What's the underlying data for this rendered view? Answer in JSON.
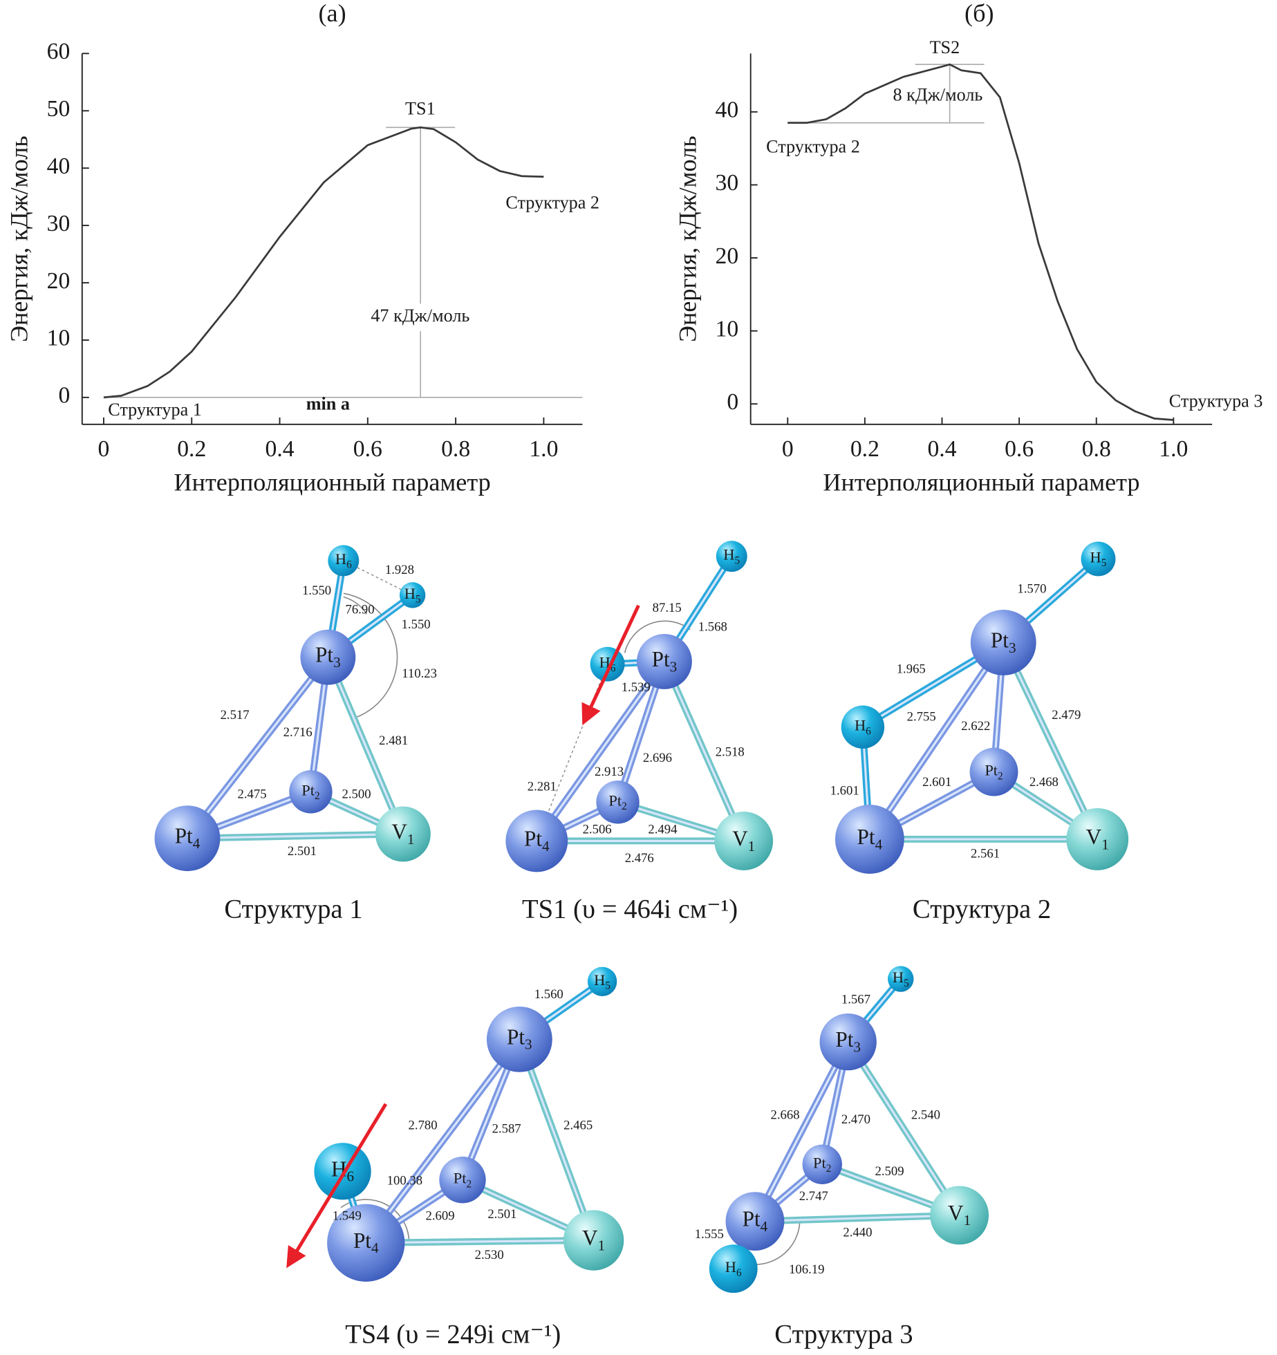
{
  "chart_data": [
    {
      "type": "line",
      "panel": "(а)",
      "y_label": "Энергия, кДж/моль",
      "x_label": "Интерполяционный параметр",
      "color": "#3a3a3a",
      "x": [
        0,
        0.04,
        0.1,
        0.15,
        0.2,
        0.3,
        0.4,
        0.5,
        0.6,
        0.7,
        0.72,
        0.75,
        0.8,
        0.85,
        0.9,
        0.95,
        1.0
      ],
      "values": [
        0,
        0.3,
        2,
        4.5,
        8,
        17.5,
        28,
        37.5,
        44,
        46.9,
        47.1,
        46.8,
        44.5,
        41.5,
        39.5,
        38.6,
        38.5
      ],
      "xlim": [
        -0.049,
        1.088
      ],
      "ylim": [
        -4.7,
        60
      ],
      "xticks": [
        0,
        0.2,
        0.4,
        0.6,
        0.8,
        {
          "value": 1,
          "label": "1.0"
        }
      ],
      "yticks": [
        0,
        10,
        20,
        30,
        40,
        50,
        60
      ],
      "annotations": [
        "TS1",
        "47 кДж/моль",
        "Структура 1",
        "min a",
        "Структура 2"
      ]
    },
    {
      "type": "line",
      "panel": "(б)",
      "y_label": "Энергия, кДж/моль",
      "x_label": "Интерполяционный параметр",
      "color": "#3a3a3a",
      "x": [
        0,
        0.05,
        0.1,
        0.15,
        0.2,
        0.3,
        0.4,
        0.42,
        0.45,
        0.5,
        0.55,
        0.6,
        0.65,
        0.7,
        0.75,
        0.8,
        0.85,
        0.9,
        0.95,
        1.0
      ],
      "values": [
        38.5,
        38.5,
        39,
        40.5,
        42.5,
        44.8,
        46.2,
        46.5,
        45.7,
        45.3,
        42,
        33,
        22,
        14,
        7.5,
        3,
        0.5,
        -1,
        -2,
        -2.2
      ],
      "xlim": [
        -0.096,
        1.1
      ],
      "ylim": [
        -2.8,
        48
      ],
      "xticks": [
        0,
        0.2,
        0.4,
        0.6,
        0.8,
        {
          "value": 1,
          "label": "1.0"
        }
      ],
      "yticks": [
        0,
        10,
        20,
        30,
        40
      ],
      "annotations": [
        "TS2",
        "8 кДж/моль",
        "Структура 2",
        "Структура 3"
      ]
    }
  ],
  "structures": [
    {
      "caption": "Структура 1",
      "atoms": [
        {
          "symbol": "H",
          "index": "6"
        },
        {
          "symbol": "H",
          "index": "5"
        },
        {
          "symbol": "Pt",
          "index": "3"
        },
        {
          "symbol": "Pt",
          "index": "2"
        },
        {
          "symbol": "Pt",
          "index": "4"
        },
        {
          "symbol": "V",
          "index": "1"
        }
      ],
      "distances": [
        "1.928",
        "1.550",
        "1.550",
        "2.517",
        "2.716",
        "2.481",
        "2.475",
        "2.500",
        "2.501"
      ],
      "angles": [
        "76.90",
        "110.23"
      ]
    },
    {
      "caption": "TS1 (υ = 464i см⁻¹)",
      "atoms": [
        {
          "symbol": "H",
          "index": "5"
        },
        {
          "symbol": "H",
          "index": "6"
        },
        {
          "symbol": "Pt",
          "index": "3"
        },
        {
          "symbol": "Pt",
          "index": "2"
        },
        {
          "symbol": "Pt",
          "index": "4"
        },
        {
          "symbol": "V",
          "index": "1"
        }
      ],
      "distances": [
        "1.568",
        "1.539",
        "2.913",
        "2.696",
        "2.518",
        "2.281",
        "2.506",
        "2.494",
        "2.476"
      ],
      "angles": [
        "87.15"
      ]
    },
    {
      "caption": "Структура 2",
      "atoms": [
        {
          "symbol": "H",
          "index": "5"
        },
        {
          "symbol": "Pt",
          "index": "3"
        },
        {
          "symbol": "H",
          "index": "6"
        },
        {
          "symbol": "Pt",
          "index": "2"
        },
        {
          "symbol": "Pt",
          "index": "4"
        },
        {
          "symbol": "V",
          "index": "1"
        }
      ],
      "distances": [
        "1.570",
        "1.965",
        "2.755",
        "2.622",
        "2.479",
        "1.601",
        "2.601",
        "2.468",
        "2.561"
      ],
      "angles": []
    },
    {
      "caption": "TS4 (υ = 249i см⁻¹)",
      "atoms": [
        {
          "symbol": "H",
          "index": "5"
        },
        {
          "symbol": "Pt",
          "index": "3"
        },
        {
          "symbol": "H",
          "index": "6"
        },
        {
          "symbol": "Pt",
          "index": "2"
        },
        {
          "symbol": "Pt",
          "index": "4"
        },
        {
          "symbol": "V",
          "index": "1"
        }
      ],
      "distances": [
        "1.560",
        "2.780",
        "2.587",
        "2.465",
        "1.549",
        "2.609",
        "2.501",
        "2.530"
      ],
      "angles": [
        "100.38"
      ]
    },
    {
      "caption": "Структура 3",
      "atoms": [
        {
          "symbol": "H",
          "index": "5"
        },
        {
          "symbol": "Pt",
          "index": "3"
        },
        {
          "symbol": "Pt",
          "index": "2"
        },
        {
          "symbol": "Pt",
          "index": "4"
        },
        {
          "symbol": "V",
          "index": "1"
        },
        {
          "symbol": "H",
          "index": "6"
        }
      ],
      "distances": [
        "1.567",
        "2.668",
        "2.470",
        "2.540",
        "2.509",
        "2.747",
        "2.440",
        "1.555"
      ],
      "angles": [
        "106.19"
      ]
    }
  ]
}
